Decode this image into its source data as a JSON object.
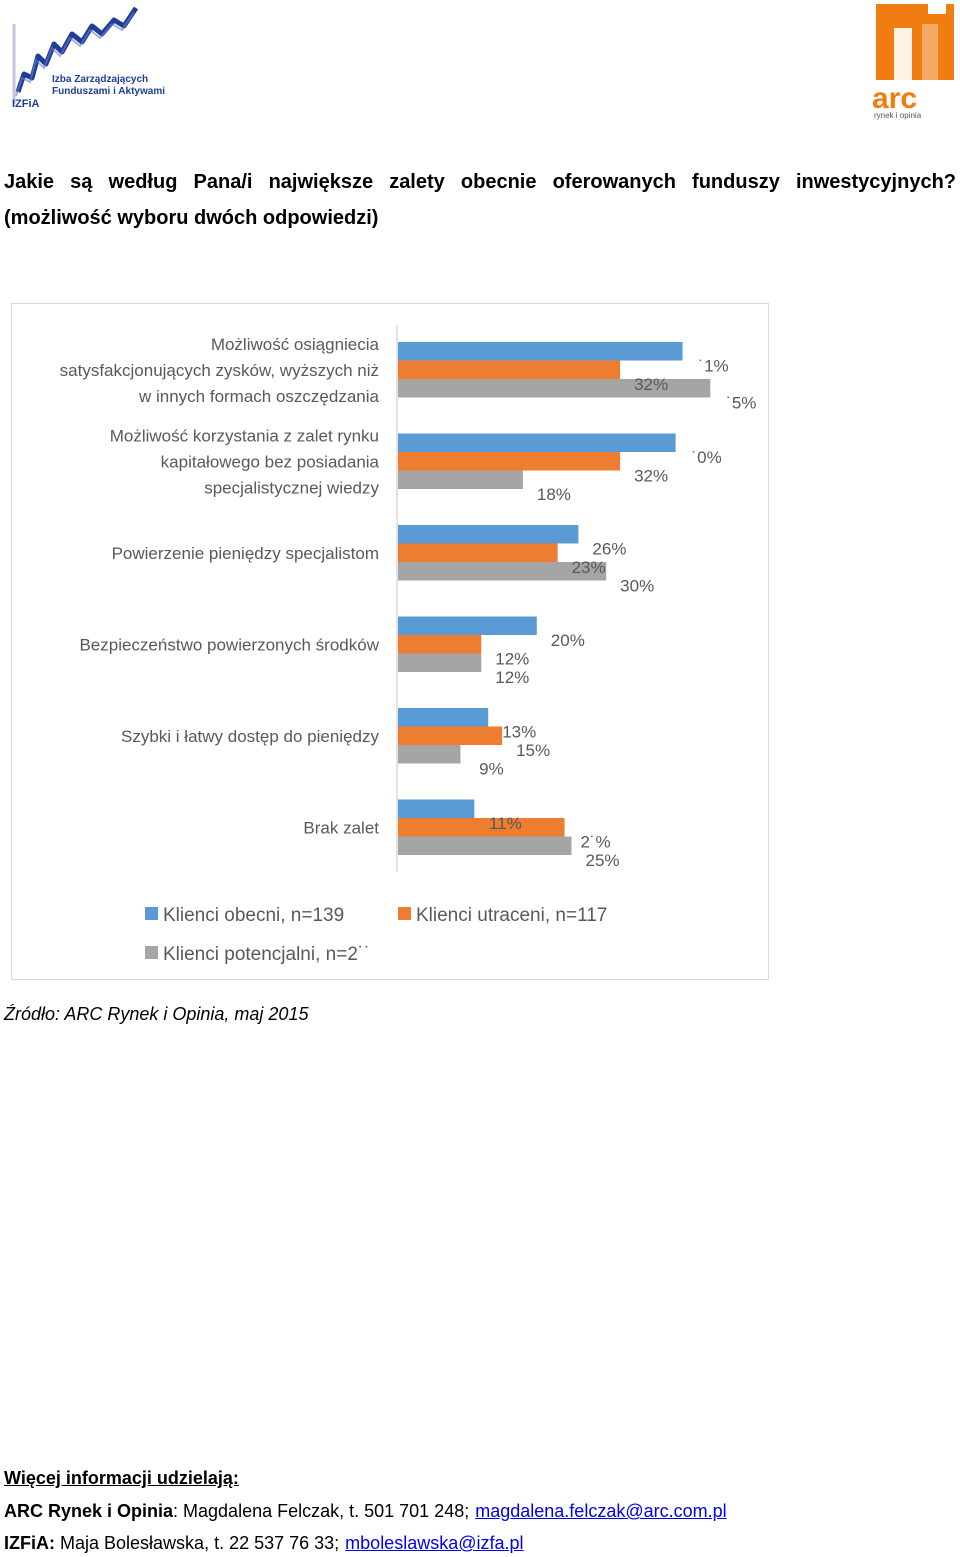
{
  "logos": {
    "izfa": {
      "line1": "Izba Zarządzających",
      "line2": "Funduszami i Aktywami",
      "acronym": "IZFiA"
    },
    "arc": {
      "wordmark": "arc",
      "tagline": "rynek i opinia"
    }
  },
  "question": {
    "line1_words": [
      "Jakie",
      "są",
      "według",
      "Pana/i",
      "największe",
      "zalety",
      "obecnie",
      "oferowanych",
      "funduszy",
      "inwestycyjnych?"
    ],
    "line2": "(możliwość wyboru dwóch odpowiedzi)"
  },
  "chart_data": {
    "type": "bar",
    "orientation": "horizontal",
    "categories": [
      [
        "Możliwość osiągniecia",
        "satysfakcjonujących zysków, wyższych niż",
        "w innych formach oszczędzania"
      ],
      [
        "Możliwość korzystania z zalet rynku",
        "kapitałowego bez posiadania",
        "specjalistycznej wiedzy"
      ],
      [
        "Powierzenie pieniędzy specjalistom"
      ],
      [
        "Bezpieczeństwo powierzonych środków"
      ],
      [
        "Szybki i łatwy dostęp do pieniędzy"
      ],
      [
        "Brak zalet"
      ]
    ],
    "series": [
      {
        "name": "Klienci obecni, n=139",
        "values": [
          41,
          40,
          26,
          20,
          13,
          11
        ],
        "labels": [
          "˙1%",
          "˙0%",
          "26%",
          "20%",
          "13%",
          "11%"
        ]
      },
      {
        "name": "Klienci utraceni, n=117",
        "values": [
          32,
          32,
          23,
          12,
          15,
          24
        ],
        "labels": [
          "32%",
          "32%",
          "23%",
          "12%",
          "15%",
          "2˙%"
        ]
      },
      {
        "name": "Klienci potencjalni, n=2˙˙",
        "values": [
          45,
          18,
          30,
          12,
          9,
          25
        ],
        "labels": [
          "˙5%",
          "18%",
          "30%",
          "12%",
          "9%",
          "25%"
        ]
      }
    ],
    "xlim": [
      0,
      50
    ],
    "colors": [
      "#5b9bd5",
      "#ed7d31",
      "#a5a5a5"
    ],
    "legend": "bottom"
  },
  "source": "Źródło: ARC Rynek i Opinia, maj 2015",
  "contact": {
    "heading": "Więcej informacji udzielają:",
    "arc_org": "ARC Rynek i Opinia",
    "arc_person": ": Magdalena Felczak, t. 501 701 248;",
    "arc_email": "magdalena.felczak@arc.com.pl",
    "izfa_org": "IZFiA:",
    "izfa_person": " Maja Bolesławska, t. 22 537 76 33;",
    "izfa_email": "mboleslawska@izfa.pl"
  }
}
